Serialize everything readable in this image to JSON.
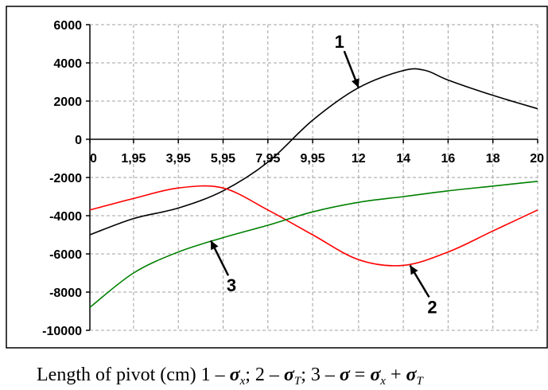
{
  "chart_data": {
    "type": "line",
    "x_tick_labels": [
      "0",
      "1,95",
      "3,95",
      "5,95",
      "7,95",
      "9,95",
      "12",
      "14",
      "16",
      "18",
      "20"
    ],
    "x": [
      0,
      1.95,
      3.95,
      5.95,
      7.95,
      9.95,
      12,
      14,
      16,
      18,
      20
    ],
    "ylim": [
      -10000,
      6000
    ],
    "xlim": [
      0,
      20
    ],
    "y_ticks": [
      6000,
      4000,
      2000,
      0,
      -2000,
      -4000,
      -6000,
      -8000,
      -10000
    ],
    "grid": true,
    "series": [
      {
        "name": "1",
        "color": "#000000",
        "points": [
          [
            0,
            -5000
          ],
          [
            1.95,
            -4150
          ],
          [
            3.95,
            -3600
          ],
          [
            5.95,
            -2700
          ],
          [
            7.95,
            -1200
          ],
          [
            9.95,
            1000
          ],
          [
            12,
            2700
          ],
          [
            14,
            3600
          ],
          [
            15,
            3600
          ],
          [
            16,
            3100
          ],
          [
            18,
            2300
          ],
          [
            20,
            1600
          ]
        ]
      },
      {
        "name": "2",
        "color": "#ff0000",
        "points": [
          [
            0,
            -3700
          ],
          [
            1.95,
            -3100
          ],
          [
            3.95,
            -2550
          ],
          [
            5.95,
            -2550
          ],
          [
            7.95,
            -3700
          ],
          [
            9.95,
            -5000
          ],
          [
            12,
            -6300
          ],
          [
            14,
            -6600
          ],
          [
            16,
            -5900
          ],
          [
            18,
            -4800
          ],
          [
            20,
            -3700
          ]
        ]
      },
      {
        "name": "3",
        "color": "#008000",
        "points": [
          [
            0,
            -8800
          ],
          [
            1.95,
            -7000
          ],
          [
            3.95,
            -5900
          ],
          [
            5.95,
            -5150
          ],
          [
            7.95,
            -4500
          ],
          [
            9.95,
            -3800
          ],
          [
            12,
            -3300
          ],
          [
            14,
            -3000
          ],
          [
            16,
            -2700
          ],
          [
            18,
            -2450
          ],
          [
            20,
            -2200
          ]
        ]
      }
    ],
    "curve_labels": [
      {
        "text": "1",
        "tip": [
          12,
          2700
        ]
      },
      {
        "text": "2",
        "tip": [
          14.3,
          -6600
        ]
      },
      {
        "text": "3",
        "tip": [
          5.4,
          -5300
        ]
      }
    ]
  },
  "caption": {
    "prefix": "Length of pivot (cm) 1 – ",
    "part1_sym": "σ",
    "part1_sub": "x",
    "part2_prefix": ";  2 – ",
    "part2_sym": "σ",
    "part2_sub": "T",
    "part3_prefix": ";  3 – ",
    "part3_sym": "σ",
    "part3_eq": " = ",
    "part3_sym_b": "σ",
    "part3_sub_b": "x",
    "part3_plus": " + ",
    "part3_sym_c": "σ",
    "part3_sub_c": "T"
  }
}
